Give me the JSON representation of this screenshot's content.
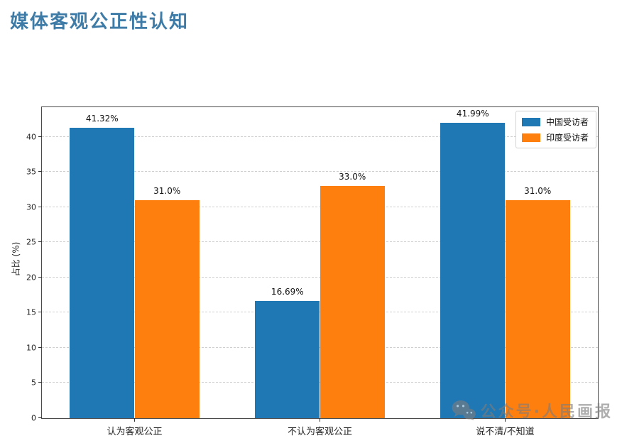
{
  "header": {
    "title": "媒体客观公正性认知",
    "title_color": "#3e7ba7"
  },
  "watermark": {
    "text": "公众号·人民画报",
    "icon": "wechat-icon",
    "color": "#7d7d7d"
  },
  "chart_data": {
    "type": "bar",
    "title": "媒体客观公正性认知",
    "categories": [
      "认为客观公正",
      "不认为客观公正",
      "说不清/不知道"
    ],
    "series": [
      {
        "name": "中国受访者",
        "color": "#1f77b4",
        "values": [
          41.32,
          16.69,
          41.99
        ],
        "labels": [
          "41.32%",
          "16.69%",
          "41.99%"
        ]
      },
      {
        "name": "印度受访者",
        "color": "#ff7f0e",
        "values": [
          31.0,
          33.0,
          31.0
        ],
        "labels": [
          "31.0%",
          "33.0%",
          "31.0%"
        ]
      }
    ],
    "xlabel": "",
    "ylabel": "占比 (%)",
    "ylim": [
      0,
      44.2
    ],
    "yticks": [
      0,
      5,
      10,
      15,
      20,
      25,
      30,
      35,
      40
    ],
    "grid": true,
    "grid_style": "dashed",
    "legend_position": "upper right",
    "bar_width_fraction": 0.35,
    "spine_color": "#4a4a4a"
  }
}
